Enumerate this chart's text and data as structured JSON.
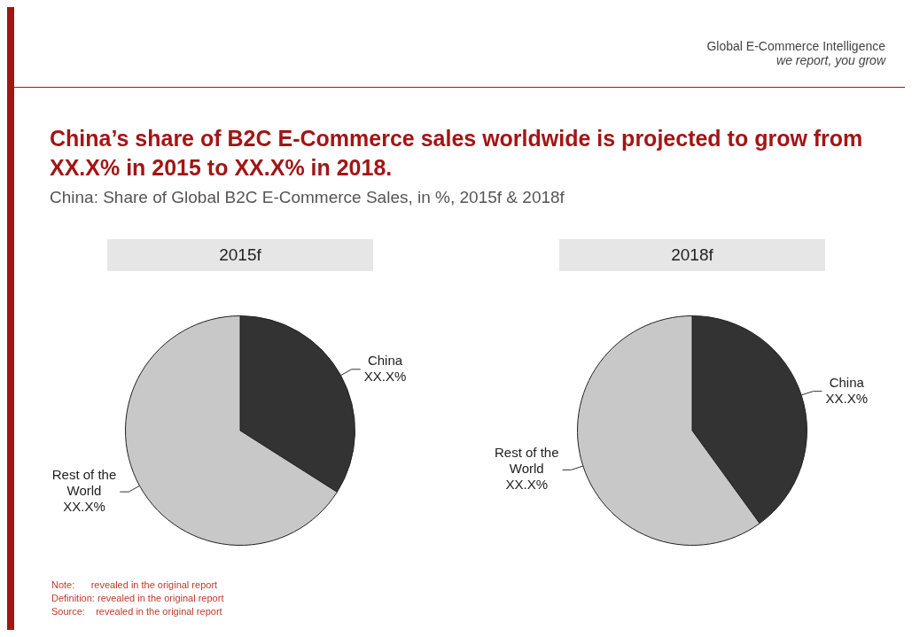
{
  "chart_data": [
    {
      "type": "pie",
      "title": "2015f",
      "categories": [
        "China",
        "Rest of the World"
      ],
      "values": [
        34,
        66
      ],
      "colors": [
        "#333333",
        "#c8c8c8"
      ],
      "value_labels": [
        "XX.X%",
        "XX.X%"
      ],
      "annotations": [
        "Global E-Commerce Intelligence",
        "we report, you grow",
        "China’s share of B2C E-Commerce sales worldwide is projected to grow from XX.X% in 2015 to XX.X% in 2018.",
        "China: Share of Global B2C E-Commerce Sales, in %, 2015f & 2018f",
        "Note:      revealed in the original report",
        "Definition: revealed in the original report",
        "Source:    revealed in the original report"
      ]
    },
    {
      "type": "pie",
      "title": "2018f",
      "categories": [
        "China",
        "Rest of the World"
      ],
      "values": [
        40,
        60
      ],
      "colors": [
        "#333333",
        "#c8c8c8"
      ],
      "value_labels": [
        "XX.X%",
        "XX.X%"
      ]
    }
  ]
}
